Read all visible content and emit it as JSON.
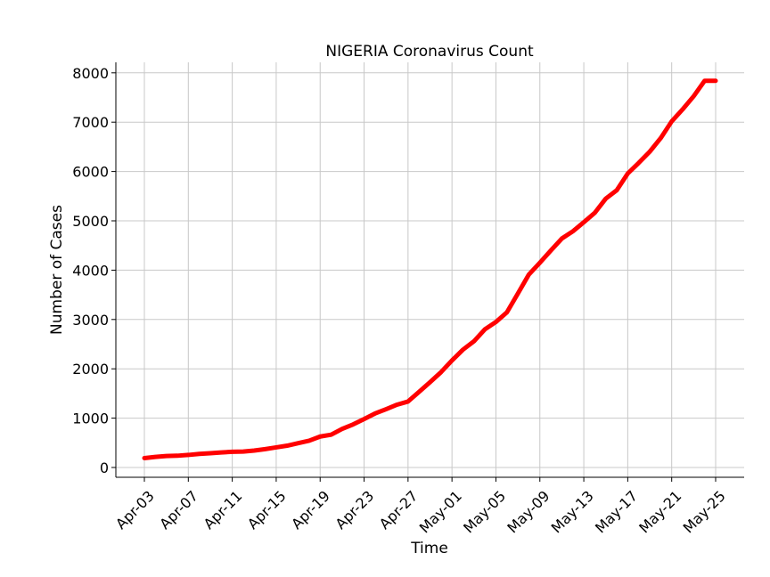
{
  "chart_data": {
    "type": "line",
    "title": "NIGERIA Coronavirus Count",
    "xlabel": "Time",
    "ylabel": "Number of Cases",
    "x_tick_labels": [
      "Apr-03",
      "Apr-07",
      "Apr-11",
      "Apr-15",
      "Apr-19",
      "Apr-23",
      "Apr-27",
      "May-01",
      "May-05",
      "May-09",
      "May-13",
      "May-17",
      "May-21",
      "May-25"
    ],
    "y_ticks": [
      0,
      1000,
      2000,
      3000,
      4000,
      5000,
      6000,
      7000,
      8000
    ],
    "xlim": [
      "2020-04-03",
      "2020-05-25"
    ],
    "ylim": [
      0,
      8200
    ],
    "grid": true,
    "line_color": "#ff0000",
    "series": [
      {
        "x": [
          "2020-04-03",
          "2020-04-04",
          "2020-04-05",
          "2020-04-06",
          "2020-04-07",
          "2020-04-08",
          "2020-04-09",
          "2020-04-10",
          "2020-04-11",
          "2020-04-12",
          "2020-04-13",
          "2020-04-14",
          "2020-04-15",
          "2020-04-16",
          "2020-04-17",
          "2020-04-18",
          "2020-04-19",
          "2020-04-20",
          "2020-04-21",
          "2020-04-22",
          "2020-04-23",
          "2020-04-24",
          "2020-04-25",
          "2020-04-26",
          "2020-04-27",
          "2020-04-28",
          "2020-04-29",
          "2020-04-30",
          "2020-05-01",
          "2020-05-02",
          "2020-05-03",
          "2020-05-04",
          "2020-05-05",
          "2020-05-06",
          "2020-05-07",
          "2020-05-08",
          "2020-05-09",
          "2020-05-10",
          "2020-05-11",
          "2020-05-12",
          "2020-05-13",
          "2020-05-14",
          "2020-05-15",
          "2020-05-16",
          "2020-05-17",
          "2020-05-18",
          "2020-05-19",
          "2020-05-20",
          "2020-05-21",
          "2020-05-22",
          "2020-05-23",
          "2020-05-24",
          "2020-05-25"
        ],
        "values": [
          190,
          215,
          232,
          238,
          254,
          276,
          288,
          305,
          318,
          323,
          343,
          373,
          407,
          442,
          493,
          542,
          627,
          665,
          782,
          873,
          981,
          1095,
          1182,
          1273,
          1337,
          1532,
          1728,
          1932,
          2170,
          2388,
          2558,
          2802,
          2950,
          3145,
          3526,
          3912,
          4151,
          4399,
          4641,
          4787,
          4971,
          5162,
          5450,
          5621,
          5959,
          6175,
          6401,
          6677,
          7016,
          7261,
          7526,
          7839,
          7839
        ]
      }
    ]
  }
}
